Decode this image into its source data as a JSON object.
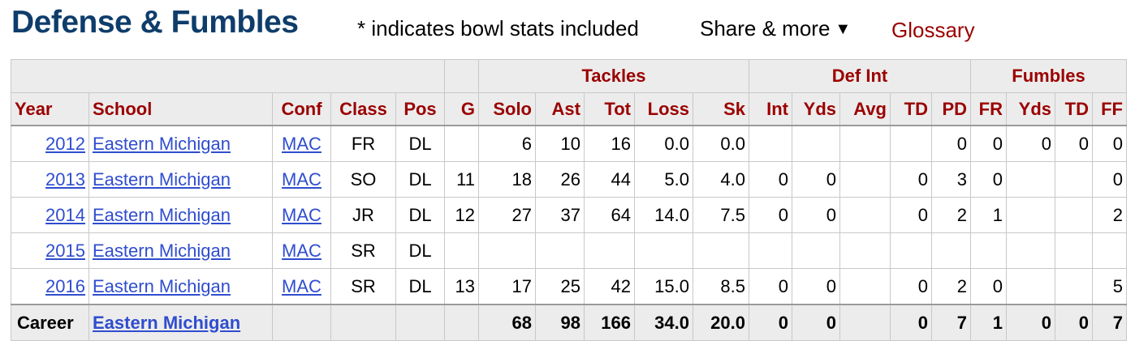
{
  "header": {
    "title": "Defense & Fumbles",
    "note": "* indicates bowl stats included",
    "share_label": "Share & more",
    "share_caret": "▼",
    "glossary_label": "Glossary"
  },
  "table": {
    "groups": {
      "tackles": "Tackles",
      "def_int": "Def Int",
      "fumbles": "Fumbles"
    },
    "columns": [
      "Year",
      "School",
      "Conf",
      "Class",
      "Pos",
      "G",
      "Solo",
      "Ast",
      "Tot",
      "Loss",
      "Sk",
      "Int",
      "Yds",
      "Avg",
      "TD",
      "PD",
      "FR",
      "Yds",
      "TD",
      "FF"
    ],
    "rows": [
      {
        "year": "2012",
        "school": "Eastern Michigan",
        "conf": "MAC",
        "cls": "FR",
        "pos": "DL",
        "g": "",
        "solo": "6",
        "ast": "10",
        "tot": "16",
        "loss": "0.0",
        "sk": "0.0",
        "int": "",
        "iyds": "",
        "avg": "",
        "itd": "",
        "pd": "0",
        "fr": "0",
        "fyds": "0",
        "ftd": "0",
        "ff": "0"
      },
      {
        "year": "2013",
        "school": "Eastern Michigan",
        "conf": "MAC",
        "cls": "SO",
        "pos": "DL",
        "g": "11",
        "solo": "18",
        "ast": "26",
        "tot": "44",
        "loss": "5.0",
        "sk": "4.0",
        "int": "0",
        "iyds": "0",
        "avg": "",
        "itd": "0",
        "pd": "3",
        "fr": "0",
        "fyds": "",
        "ftd": "",
        "ff": "0"
      },
      {
        "year": "2014",
        "school": "Eastern Michigan",
        "conf": "MAC",
        "cls": "JR",
        "pos": "DL",
        "g": "12",
        "solo": "27",
        "ast": "37",
        "tot": "64",
        "loss": "14.0",
        "sk": "7.5",
        "int": "0",
        "iyds": "0",
        "avg": "",
        "itd": "0",
        "pd": "2",
        "fr": "1",
        "fyds": "",
        "ftd": "",
        "ff": "2"
      },
      {
        "year": "2015",
        "school": "Eastern Michigan",
        "conf": "MAC",
        "cls": "SR",
        "pos": "DL",
        "g": "",
        "solo": "",
        "ast": "",
        "tot": "",
        "loss": "",
        "sk": "",
        "int": "",
        "iyds": "",
        "avg": "",
        "itd": "",
        "pd": "",
        "fr": "",
        "fyds": "",
        "ftd": "",
        "ff": ""
      },
      {
        "year": "2016",
        "school": "Eastern Michigan",
        "conf": "MAC",
        "cls": "SR",
        "pos": "DL",
        "g": "13",
        "solo": "17",
        "ast": "25",
        "tot": "42",
        "loss": "15.0",
        "sk": "8.5",
        "int": "0",
        "iyds": "0",
        "avg": "",
        "itd": "0",
        "pd": "2",
        "fr": "0",
        "fyds": "",
        "ftd": "",
        "ff": "5"
      }
    ],
    "career": {
      "label": "Career",
      "school": "Eastern Michigan",
      "solo": "68",
      "ast": "98",
      "tot": "166",
      "loss": "34.0",
      "sk": "20.0",
      "int": "0",
      "iyds": "0",
      "avg": "",
      "itd": "0",
      "pd": "7",
      "fr": "1",
      "fyds": "0",
      "ftd": "0",
      "ff": "7"
    }
  }
}
